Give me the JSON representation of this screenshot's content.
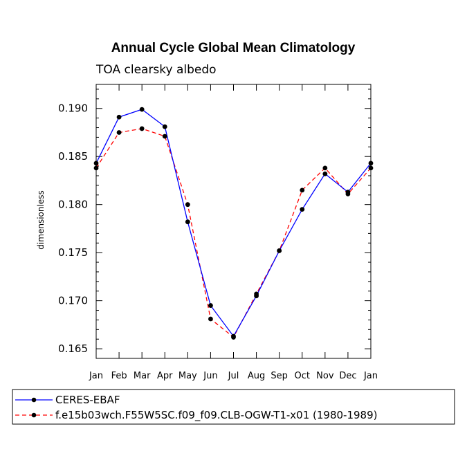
{
  "chart_data": {
    "type": "line",
    "title": "Annual Cycle Global Mean Climatology",
    "subtitle": "TOA clearsky albedo",
    "xlabel": "",
    "ylabel": "dimensionless",
    "categories": [
      "Jan",
      "Feb",
      "Mar",
      "Apr",
      "May",
      "Jun",
      "Jul",
      "Aug",
      "Sep",
      "Oct",
      "Nov",
      "Dec",
      "Jan"
    ],
    "ylim": [
      0.164,
      0.1925
    ],
    "yticks": [
      0.165,
      0.17,
      0.175,
      0.18,
      0.185,
      0.19
    ],
    "ytick_labels": [
      "0.165",
      "0.170",
      "0.175",
      "0.180",
      "0.185",
      "0.190"
    ],
    "grid": false,
    "legend_position": "bottom",
    "series": [
      {
        "name": "CERES-EBAF",
        "color": "#0000ff",
        "dash": "solid",
        "values": [
          0.1843,
          0.1891,
          0.1899,
          0.1881,
          0.1782,
          0.1695,
          0.1663,
          0.1705,
          0.1752,
          0.1795,
          0.1832,
          0.1813,
          0.1843
        ]
      },
      {
        "name": "f.e15b03wch.F55W5SC.f09_f09.CLB-OGW-T1-x01 (1980-1989)",
        "color": "#ff0000",
        "dash": "dashed",
        "values": [
          0.1838,
          0.1875,
          0.1879,
          0.1871,
          0.18,
          0.1681,
          0.1662,
          0.1707,
          0.1752,
          0.1815,
          0.1838,
          0.1811,
          0.1838
        ]
      }
    ]
  }
}
